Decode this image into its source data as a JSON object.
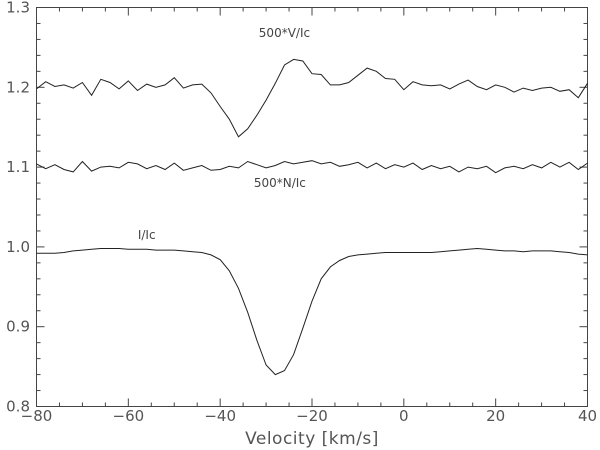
{
  "chart_data": {
    "type": "line",
    "title": "",
    "xlabel": "Velocity [km/s]",
    "ylabel": "",
    "xlim": [
      -80,
      40
    ],
    "ylim": [
      0.8,
      1.3
    ],
    "x_ticks": [
      -80,
      -60,
      -40,
      -20,
      0,
      20,
      40
    ],
    "x_tick_labels": [
      "−80",
      "−60",
      "−40",
      "−20",
      "0",
      "20",
      "40"
    ],
    "y_ticks": [
      0.8,
      0.9,
      1.0,
      1.1,
      1.2,
      1.3
    ],
    "y_tick_labels": [
      "0.8",
      "0.9",
      "1.0",
      "1.1",
      "1.2",
      "1.3"
    ],
    "grid": false,
    "line_color": "#222222",
    "series": [
      {
        "name": "500*V/Ic",
        "label_at": [
          -26,
          1.263
        ],
        "x": [
          -80,
          -78,
          -76,
          -74,
          -72,
          -70,
          -68,
          -66,
          -64,
          -62,
          -60,
          -58,
          -56,
          -54,
          -52,
          -50,
          -48,
          -46,
          -44,
          -42,
          -40,
          -38,
          -36,
          -34,
          -32,
          -30,
          -28,
          -26,
          -24,
          -22,
          -20,
          -18,
          -16,
          -14,
          -12,
          -10,
          -8,
          -6,
          -4,
          -2,
          0,
          2,
          4,
          6,
          8,
          10,
          12,
          14,
          16,
          18,
          20,
          22,
          24,
          26,
          28,
          30,
          32,
          34,
          36,
          38,
          40
        ],
        "y": [
          1.198,
          1.207,
          1.201,
          1.203,
          1.199,
          1.206,
          1.19,
          1.21,
          1.206,
          1.198,
          1.208,
          1.196,
          1.204,
          1.2,
          1.203,
          1.212,
          1.199,
          1.203,
          1.204,
          1.193,
          1.176,
          1.16,
          1.138,
          1.148,
          1.165,
          1.184,
          1.205,
          1.228,
          1.235,
          1.233,
          1.217,
          1.216,
          1.203,
          1.203,
          1.206,
          1.215,
          1.224,
          1.22,
          1.211,
          1.21,
          1.197,
          1.207,
          1.203,
          1.202,
          1.203,
          1.198,
          1.204,
          1.209,
          1.201,
          1.197,
          1.203,
          1.2,
          1.194,
          1.199,
          1.196,
          1.199,
          1.2,
          1.195,
          1.197,
          1.187,
          1.205
        ]
      },
      {
        "name": "500*N/Ic",
        "label_at": [
          -27,
          1.075
        ],
        "x": [
          -80,
          -78,
          -76,
          -74,
          -72,
          -70,
          -68,
          -66,
          -64,
          -62,
          -60,
          -58,
          -56,
          -54,
          -52,
          -50,
          -48,
          -46,
          -44,
          -42,
          -40,
          -38,
          -36,
          -34,
          -32,
          -30,
          -28,
          -26,
          -24,
          -22,
          -20,
          -18,
          -16,
          -14,
          -12,
          -10,
          -8,
          -6,
          -4,
          -2,
          0,
          2,
          4,
          6,
          8,
          10,
          12,
          14,
          16,
          18,
          20,
          22,
          24,
          26,
          28,
          30,
          32,
          34,
          36,
          38,
          40
        ],
        "y": [
          1.104,
          1.098,
          1.103,
          1.097,
          1.094,
          1.107,
          1.095,
          1.1,
          1.101,
          1.099,
          1.106,
          1.104,
          1.098,
          1.102,
          1.097,
          1.105,
          1.096,
          1.099,
          1.102,
          1.096,
          1.097,
          1.101,
          1.099,
          1.107,
          1.103,
          1.099,
          1.102,
          1.107,
          1.104,
          1.106,
          1.108,
          1.104,
          1.106,
          1.101,
          1.103,
          1.106,
          1.099,
          1.105,
          1.098,
          1.103,
          1.1,
          1.105,
          1.097,
          1.102,
          1.098,
          1.101,
          1.094,
          1.1,
          1.098,
          1.101,
          1.093,
          1.099,
          1.101,
          1.098,
          1.103,
          1.099,
          1.106,
          1.1,
          1.106,
          1.097,
          1.105
        ]
      },
      {
        "name": "I/Ic",
        "label_at": [
          -56,
          1.01
        ],
        "x": [
          -80,
          -78,
          -76,
          -74,
          -72,
          -70,
          -68,
          -66,
          -64,
          -62,
          -60,
          -58,
          -56,
          -54,
          -52,
          -50,
          -48,
          -46,
          -44,
          -42,
          -40,
          -38,
          -36,
          -34,
          -32,
          -30,
          -28,
          -26,
          -24,
          -22,
          -20,
          -18,
          -16,
          -14,
          -12,
          -10,
          -8,
          -6,
          -4,
          -2,
          0,
          2,
          4,
          6,
          8,
          10,
          12,
          14,
          16,
          18,
          20,
          22,
          24,
          26,
          28,
          30,
          32,
          34,
          36,
          38,
          40
        ],
        "y": [
          0.992,
          0.992,
          0.992,
          0.993,
          0.995,
          0.996,
          0.997,
          0.998,
          0.998,
          0.998,
          0.997,
          0.997,
          0.997,
          0.996,
          0.996,
          0.996,
          0.995,
          0.994,
          0.993,
          0.99,
          0.984,
          0.97,
          0.948,
          0.918,
          0.883,
          0.852,
          0.84,
          0.845,
          0.865,
          0.898,
          0.932,
          0.96,
          0.975,
          0.983,
          0.988,
          0.99,
          0.991,
          0.992,
          0.993,
          0.993,
          0.993,
          0.993,
          0.993,
          0.993,
          0.994,
          0.995,
          0.996,
          0.997,
          0.998,
          0.997,
          0.996,
          0.995,
          0.995,
          0.994,
          0.995,
          0.995,
          0.995,
          0.994,
          0.993,
          0.991,
          0.99
        ]
      }
    ]
  }
}
